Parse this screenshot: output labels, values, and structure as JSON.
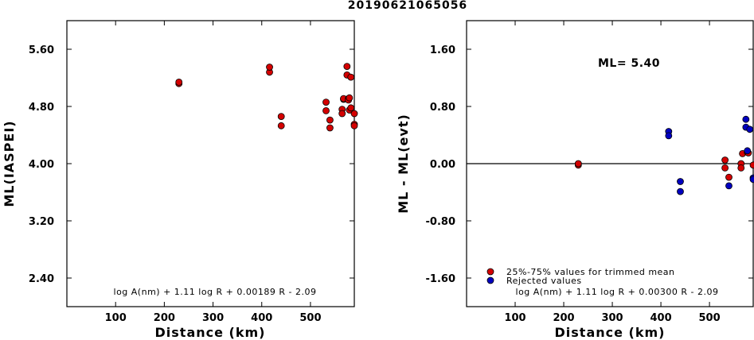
{
  "title": "20190621065056",
  "chart_data": [
    {
      "type": "scatter",
      "xlabel": "Distance (km)",
      "ylabel": "ML(IASPEI)",
      "xlim": [
        0,
        590
      ],
      "ylim": [
        2.0,
        6.0
      ],
      "xticks": [
        "100",
        "200",
        "300",
        "400",
        "500"
      ],
      "xtick_values": [
        100,
        200,
        300,
        400,
        500
      ],
      "yticks": [
        "2.40",
        "3.20",
        "4.00",
        "4.80",
        "5.60"
      ],
      "ytick_values": [
        2.4,
        3.2,
        4.0,
        4.8,
        5.6
      ],
      "formula": "log A(nm) + 1.11 log R + 0.00189 R - 2.09",
      "point_color": "#d40000",
      "points": [
        {
          "x": 230,
          "y": 5.12
        },
        {
          "x": 230,
          "y": 5.14
        },
        {
          "x": 416,
          "y": 5.28
        },
        {
          "x": 416,
          "y": 5.35
        },
        {
          "x": 440,
          "y": 4.66
        },
        {
          "x": 440,
          "y": 4.53
        },
        {
          "x": 532,
          "y": 4.86
        },
        {
          "x": 532,
          "y": 4.74
        },
        {
          "x": 540,
          "y": 4.61
        },
        {
          "x": 540,
          "y": 4.5
        },
        {
          "x": 565,
          "y": 4.76
        },
        {
          "x": 565,
          "y": 4.7
        },
        {
          "x": 568,
          "y": 4.9
        },
        {
          "x": 568,
          "y": 4.91
        },
        {
          "x": 575,
          "y": 5.36
        },
        {
          "x": 575,
          "y": 5.24
        },
        {
          "x": 578,
          "y": 4.91
        },
        {
          "x": 578,
          "y": 4.89
        },
        {
          "x": 580,
          "y": 4.92
        },
        {
          "x": 580,
          "y": 4.75
        },
        {
          "x": 583,
          "y": 5.21
        },
        {
          "x": 583,
          "y": 4.78
        },
        {
          "x": 590,
          "y": 4.7
        },
        {
          "x": 590,
          "y": 4.55
        },
        {
          "x": 592,
          "y": 4.53
        }
      ]
    },
    {
      "type": "scatter",
      "xlabel": "Distance (km)",
      "ylabel": "ML - ML(evt)",
      "xlim": [
        0,
        590
      ],
      "ylim": [
        -2.0,
        2.0
      ],
      "xticks": [
        "100",
        "200",
        "300",
        "400",
        "500"
      ],
      "xtick_values": [
        100,
        200,
        300,
        400,
        500
      ],
      "yticks": [
        "-1.60",
        "-0.80",
        "0.00",
        "0.80",
        "1.60"
      ],
      "ytick_values": [
        -1.6,
        -0.8,
        0.0,
        0.8,
        1.6
      ],
      "ml_label": "ML= 5.40",
      "formula": "log A(nm) + 1.11 log R + 0.00300 R - 2.09",
      "legend": [
        {
          "label": "25%-75% values for trimmed mean",
          "color": "#d40000"
        },
        {
          "label": "Rejected values",
          "color": "#0000c0"
        }
      ],
      "trimmed_points": [
        {
          "x": 230,
          "y": -0.02
        },
        {
          "x": 230,
          "y": 0.0
        },
        {
          "x": 532,
          "y": 0.05
        },
        {
          "x": 532,
          "y": -0.06
        },
        {
          "x": 540,
          "y": -0.19
        },
        {
          "x": 565,
          "y": 0.0
        },
        {
          "x": 565,
          "y": -0.06
        },
        {
          "x": 568,
          "y": 0.14
        },
        {
          "x": 578,
          "y": 0.16
        },
        {
          "x": 580,
          "y": 0.15
        },
        {
          "x": 590,
          "y": -0.02
        }
      ],
      "rejected_points": [
        {
          "x": 416,
          "y": 0.45
        },
        {
          "x": 416,
          "y": 0.39
        },
        {
          "x": 440,
          "y": -0.25
        },
        {
          "x": 440,
          "y": -0.39
        },
        {
          "x": 540,
          "y": -0.31
        },
        {
          "x": 575,
          "y": 0.62
        },
        {
          "x": 575,
          "y": 0.51
        },
        {
          "x": 578,
          "y": 0.18
        },
        {
          "x": 583,
          "y": 0.48
        },
        {
          "x": 590,
          "y": -0.2
        },
        {
          "x": 590,
          "y": -0.22
        }
      ]
    }
  ]
}
